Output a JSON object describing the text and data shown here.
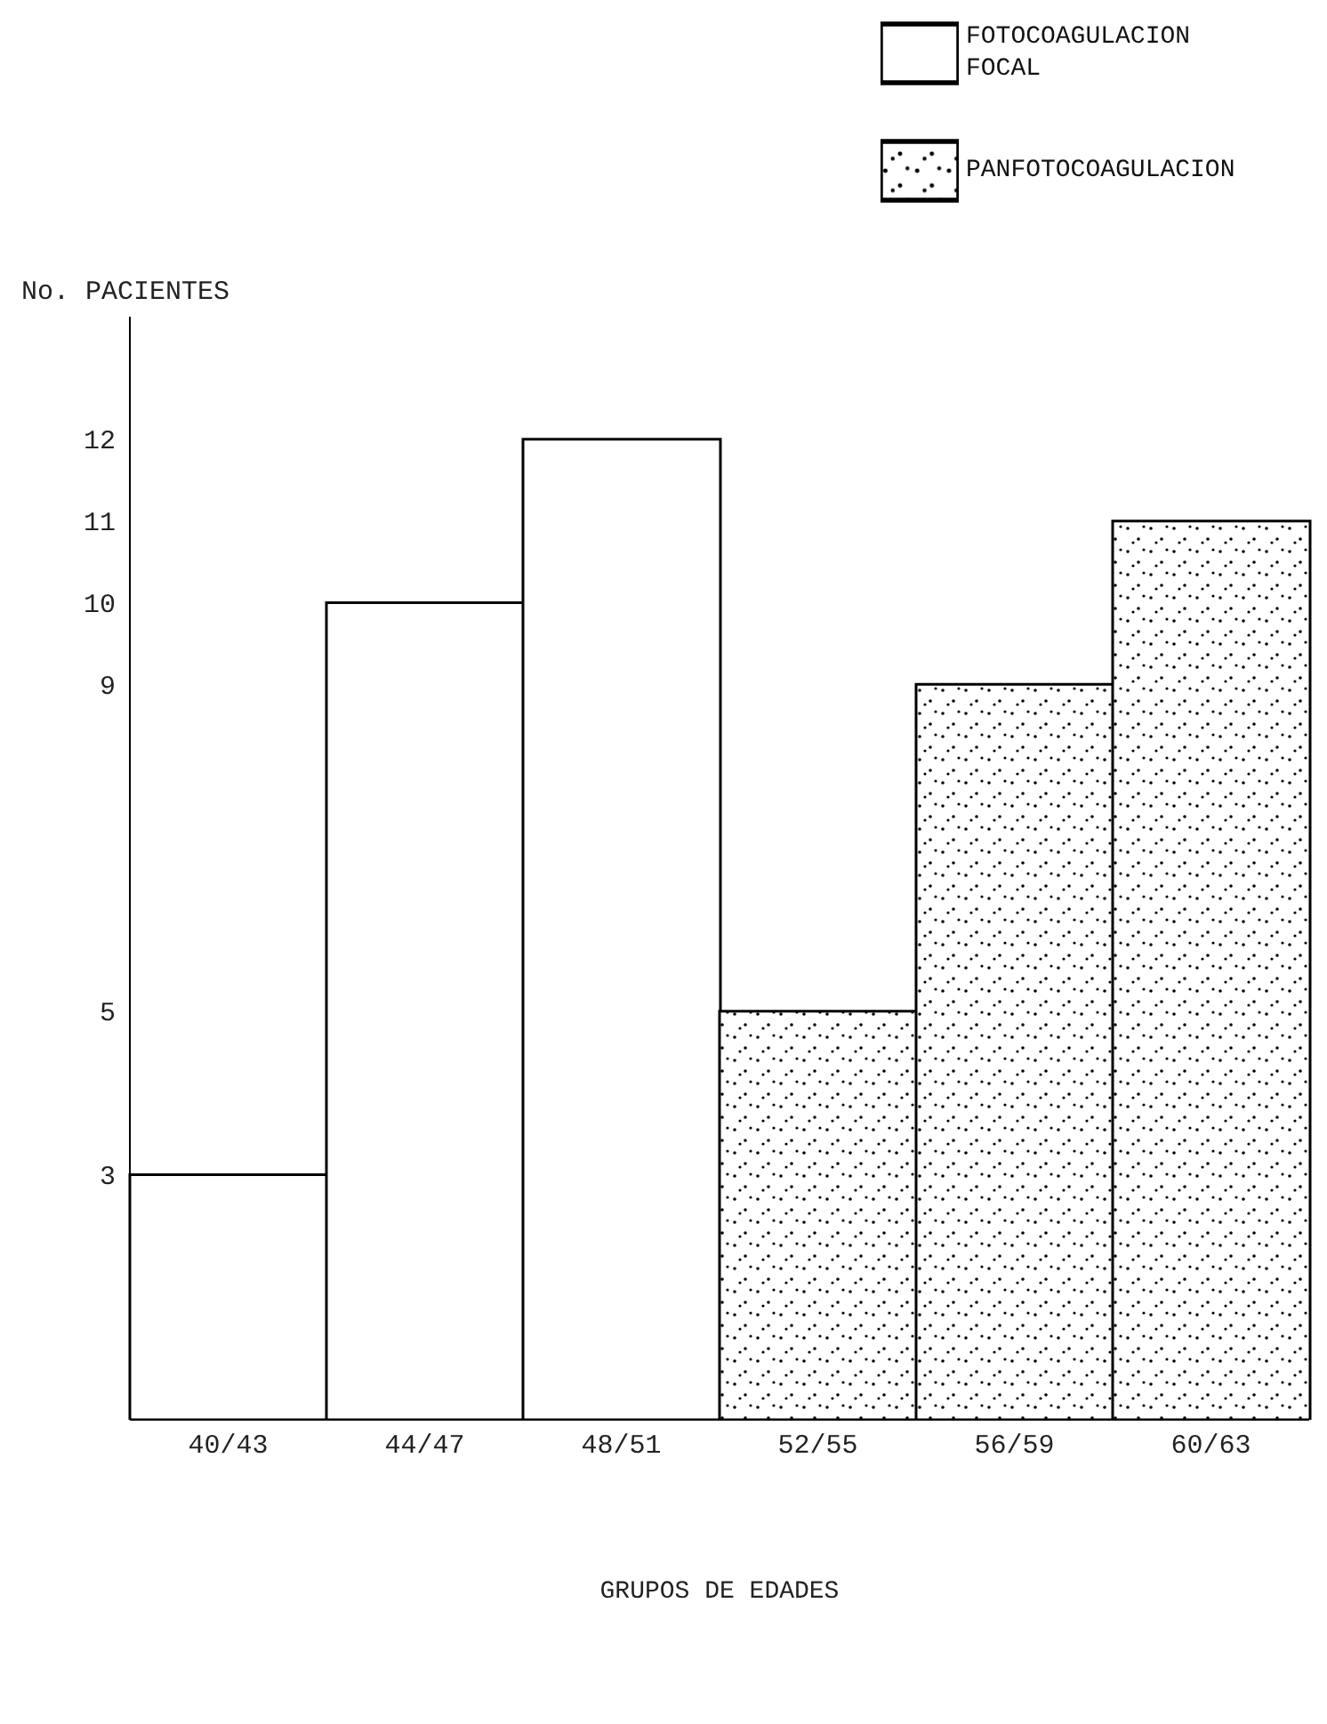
{
  "chart_data": {
    "type": "bar",
    "xlabel": "GRUPOS DE EDADES",
    "ylabel": "No. PACIENTES",
    "categories": [
      "40/43",
      "44/47",
      "48/51",
      "52/55",
      "56/59",
      "60/63"
    ],
    "stacked": true,
    "series": [
      {
        "name": "FOTOCOAGULACION FOCAL",
        "color": "#ffffff",
        "values": [
          3,
          10,
          12,
          null,
          null,
          null
        ]
      },
      {
        "name": "PANFOTOCOAGULACION",
        "color": "#000000",
        "values": [
          null,
          null,
          null,
          5,
          9,
          11
        ]
      }
    ],
    "ylim": [
      0,
      13.5
    ],
    "yticks": [
      3,
      5,
      9,
      10,
      11,
      12
    ],
    "legend": "top right"
  }
}
